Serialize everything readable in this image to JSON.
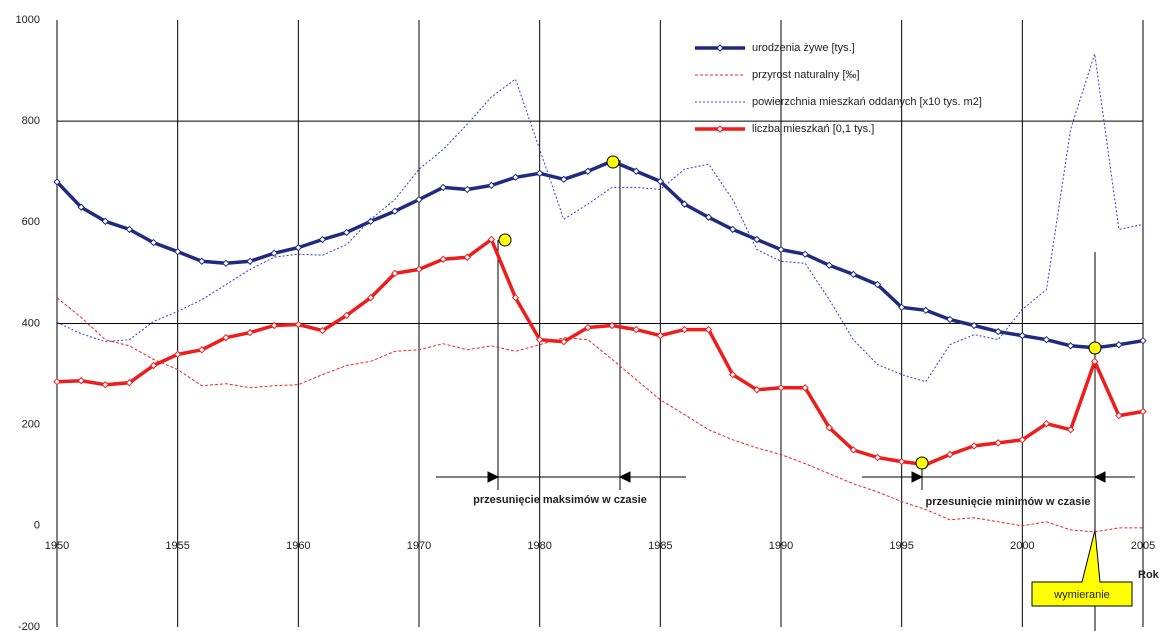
{
  "chart_data": {
    "type": "line",
    "categories": [
      "1950",
      null,
      null,
      null,
      null,
      "1955",
      null,
      null,
      null,
      null,
      "1960",
      null,
      null,
      null,
      null,
      "1970",
      null,
      null,
      null,
      null,
      "1980",
      null,
      null,
      null,
      null,
      "1985",
      null,
      null,
      null,
      null,
      "1990",
      null,
      null,
      null,
      null,
      "1995",
      null,
      null,
      null,
      null,
      "2000",
      null,
      null,
      null,
      null,
      "2005"
    ],
    "x_label": "Rok",
    "ylim": [
      -200,
      1000
    ],
    "yticks": [
      -200,
      0,
      200,
      400,
      600,
      800,
      1000
    ],
    "y_gridlines": [
      400,
      800
    ],
    "series": [
      {
        "name": "urodzenia żywe [tys.]",
        "color": "#1f2a80",
        "width": 3.5,
        "markers": true,
        "dash": "",
        "values": [
          680,
          630,
          602,
          586,
          560,
          542,
          523,
          519,
          523,
          539,
          550,
          566,
          580,
          602,
          622,
          645,
          669,
          665,
          673,
          689,
          697,
          685,
          701,
          721,
          701,
          681,
          636,
          610,
          586,
          566,
          546,
          537,
          515,
          497,
          477,
          432,
          426,
          408,
          396,
          384,
          376,
          368,
          356,
          352,
          358,
          366
        ]
      },
      {
        "name": "przyrost naturalny [‰]",
        "color": "#ee2222",
        "width": 1,
        "markers": false,
        "dash": "3 2",
        "values": [
          451,
          412,
          368,
          356,
          329,
          309,
          277,
          281,
          273,
          277,
          279,
          299,
          317,
          325,
          345,
          348,
          360,
          348,
          356,
          345,
          358,
          372,
          368,
          329,
          289,
          249,
          220,
          190,
          170,
          154,
          141,
          123,
          103,
          83,
          67,
          48,
          32,
          12,
          16,
          8,
          0,
          8,
          -8,
          -12,
          -4,
          -4
        ]
      },
      {
        "name": "powierzchnia mieszkań oddanych [x10 tys. m2]",
        "color": "#2a3fd0",
        "width": 1,
        "markers": false,
        "dash": "2 2",
        "values": [
          402,
          380,
          364,
          368,
          404,
          424,
          447,
          477,
          507,
          531,
          537,
          535,
          556,
          606,
          645,
          705,
          744,
          794,
          848,
          883,
          744,
          606,
          636,
          669,
          669,
          665,
          705,
          715,
          645,
          546,
          523,
          519,
          447,
          368,
          319,
          299,
          285,
          358,
          378,
          368,
          428,
          467,
          784,
          933,
          586,
          596
        ]
      },
      {
        "name": "liczba mieszkań [0,1 tys.]",
        "color": "#ee1c1c",
        "width": 3.5,
        "markers": true,
        "dash": "",
        "values": [
          285,
          287,
          279,
          283,
          317,
          339,
          348,
          372,
          382,
          396,
          398,
          386,
          416,
          451,
          499,
          507,
          527,
          531,
          566,
          451,
          368,
          364,
          392,
          396,
          388,
          376,
          388,
          388,
          299,
          269,
          273,
          273,
          194,
          150,
          135,
          127,
          121,
          141,
          158,
          164,
          170,
          202,
          190,
          325,
          218,
          226
        ]
      }
    ],
    "annotations": {
      "max_shift": "przesunięcie maksimów w czasie",
      "min_shift": "przesunięcie minimów w czasie",
      "callout": "wymieranie"
    }
  }
}
